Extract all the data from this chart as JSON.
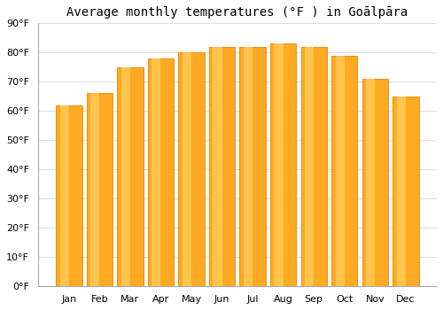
{
  "title": "Average monthly temperatures (°F ) in Goālpāra",
  "months": [
    "Jan",
    "Feb",
    "Mar",
    "Apr",
    "May",
    "Jun",
    "Jul",
    "Aug",
    "Sep",
    "Oct",
    "Nov",
    "Dec"
  ],
  "values": [
    62,
    66,
    75,
    78,
    80,
    82,
    82,
    83,
    82,
    79,
    71,
    65
  ],
  "bar_color_main": "#FFAA22",
  "bar_color_light": "#FFD060",
  "bar_color_edge": "#E89010",
  "ylim": [
    0,
    90
  ],
  "yticks": [
    0,
    10,
    20,
    30,
    40,
    50,
    60,
    70,
    80,
    90
  ],
  "ytick_labels": [
    "0°F",
    "10°F",
    "20°F",
    "30°F",
    "40°F",
    "50°F",
    "60°F",
    "70°F",
    "80°F",
    "90°F"
  ],
  "background_color": "#ffffff",
  "plot_bg_color": "#ffffff",
  "grid_color": "#dddddd",
  "title_fontsize": 10,
  "tick_fontsize": 8,
  "bar_width": 0.85
}
